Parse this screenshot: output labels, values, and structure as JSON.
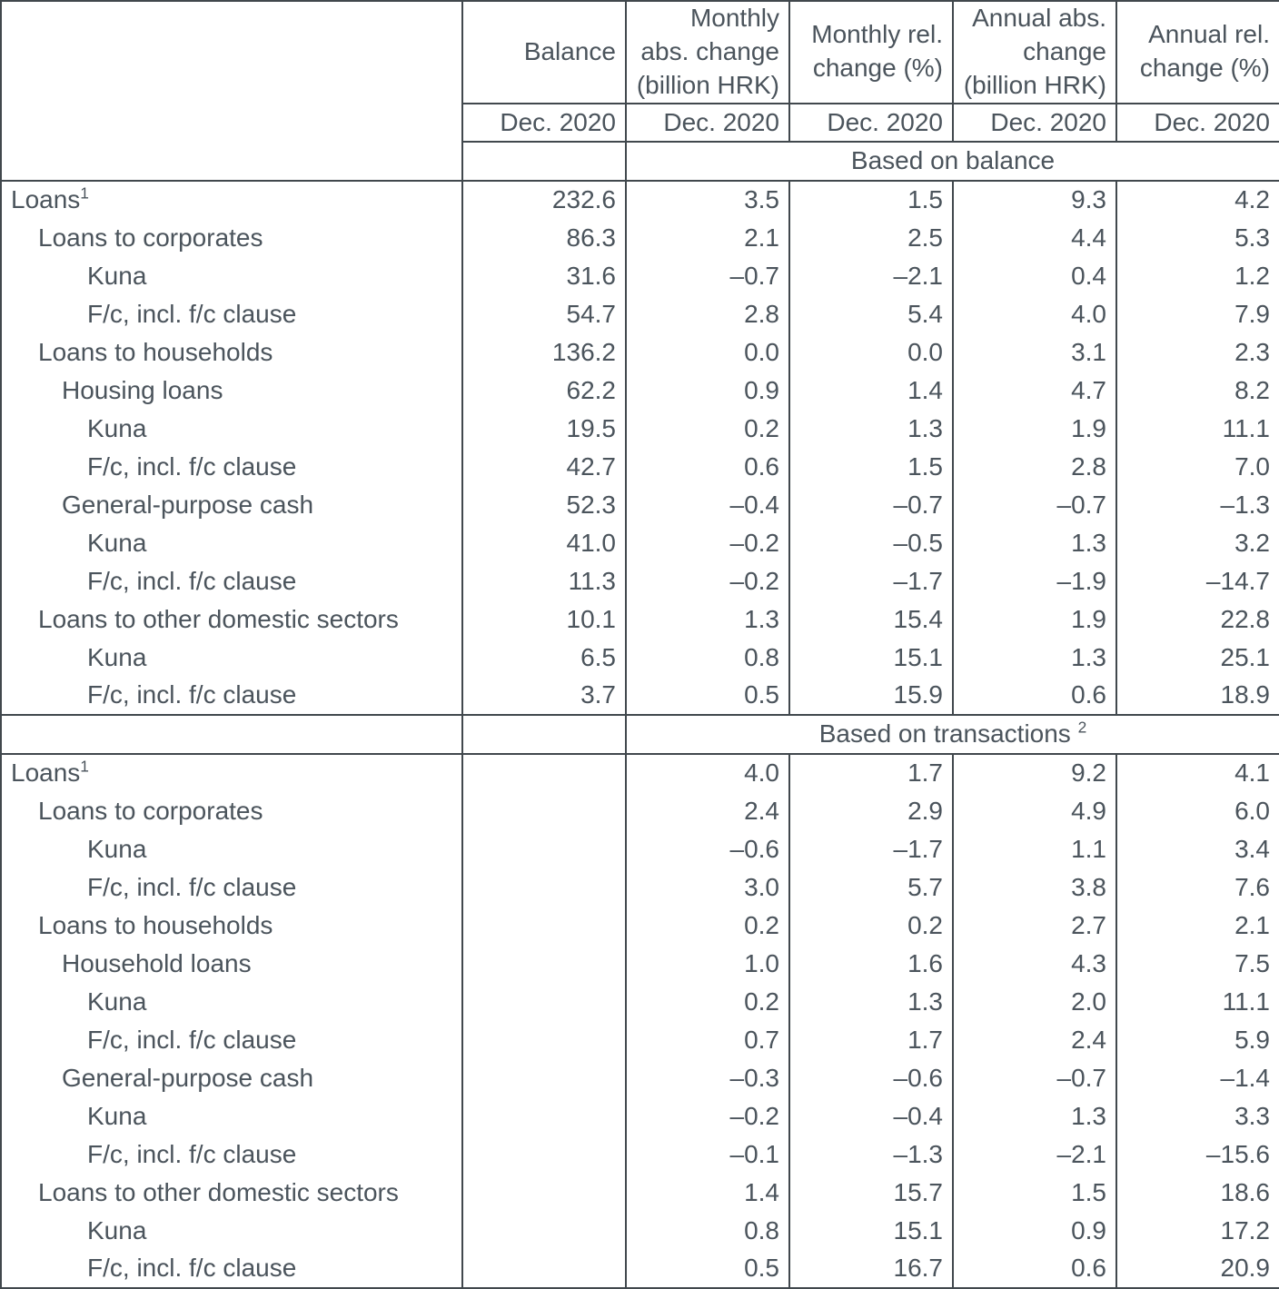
{
  "table": {
    "col_headers": {
      "labels_col": "",
      "balance": "Balance",
      "monthly_abs": "Monthly\nabs. change\n(billion HRK)",
      "monthly_rel": "Monthly rel.\nchange (%)",
      "annual_abs": "Annual abs.\nchange\n(billion HRK)",
      "annual_rel": "Annual rel.\nchange (%)"
    },
    "period_row": {
      "balance": "Dec. 2020",
      "monthly_abs": "Dec. 2020",
      "monthly_rel": "Dec. 2020",
      "annual_abs": "Dec. 2020",
      "annual_rel": "Dec. 2020"
    },
    "sections": [
      {
        "title": "Based on balance",
        "rows": [
          {
            "label": "Loans",
            "sup": "1",
            "indent": 0,
            "values": [
              "232.6",
              "3.5",
              "1.5",
              "9.3",
              "4.2"
            ]
          },
          {
            "label": "Loans to corporates",
            "indent": 1,
            "values": [
              "86.3",
              "2.1",
              "2.5",
              "4.4",
              "5.3"
            ]
          },
          {
            "label": "Kuna",
            "indent": 3,
            "values": [
              "31.6",
              "–0.7",
              "–2.1",
              "0.4",
              "1.2"
            ]
          },
          {
            "label": "F/c, incl. f/c clause",
            "indent": 3,
            "values": [
              "54.7",
              "2.8",
              "5.4",
              "4.0",
              "7.9"
            ]
          },
          {
            "label": "Loans to households",
            "indent": 1,
            "values": [
              "136.2",
              "0.0",
              "0.0",
              "3.1",
              "2.3"
            ]
          },
          {
            "label": "Housing loans",
            "indent": 2,
            "values": [
              "62.2",
              "0.9",
              "1.4",
              "4.7",
              "8.2"
            ]
          },
          {
            "label": "Kuna",
            "indent": 3,
            "values": [
              "19.5",
              "0.2",
              "1.3",
              "1.9",
              "11.1"
            ]
          },
          {
            "label": "F/c, incl. f/c clause",
            "indent": 3,
            "values": [
              "42.7",
              "0.6",
              "1.5",
              "2.8",
              "7.0"
            ]
          },
          {
            "label": "General-purpose cash",
            "indent": 2,
            "values": [
              "52.3",
              "–0.4",
              "–0.7",
              "–0.7",
              "–1.3"
            ]
          },
          {
            "label": "Kuna",
            "indent": 3,
            "values": [
              "41.0",
              "–0.2",
              "–0.5",
              "1.3",
              "3.2"
            ]
          },
          {
            "label": "F/c, incl. f/c clause",
            "indent": 3,
            "values": [
              "11.3",
              "–0.2",
              "–1.7",
              "–1.9",
              "–14.7"
            ]
          },
          {
            "label": "Loans to other domestic sectors",
            "indent": 1,
            "values": [
              "10.1",
              "1.3",
              "15.4",
              "1.9",
              "22.8"
            ]
          },
          {
            "label": "Kuna",
            "indent": 3,
            "values": [
              "6.5",
              "0.8",
              "15.1",
              "1.3",
              "25.1"
            ]
          },
          {
            "label": "F/c, incl. f/c clause",
            "indent": 3,
            "values": [
              "3.7",
              "0.5",
              "15.9",
              "0.6",
              "18.9"
            ]
          }
        ]
      },
      {
        "title": "Based on transactions",
        "title_sup": "2",
        "rows": [
          {
            "label": "Loans",
            "sup": "1",
            "indent": 0,
            "values": [
              "",
              "4.0",
              "1.7",
              "9.2",
              "4.1"
            ]
          },
          {
            "label": "Loans to corporates",
            "indent": 1,
            "values": [
              "",
              "2.4",
              "2.9",
              "4.9",
              "6.0"
            ]
          },
          {
            "label": "Kuna",
            "indent": 3,
            "values": [
              "",
              "–0.6",
              "–1.7",
              "1.1",
              "3.4"
            ]
          },
          {
            "label": "F/c, incl. f/c clause",
            "indent": 3,
            "values": [
              "",
              "3.0",
              "5.7",
              "3.8",
              "7.6"
            ]
          },
          {
            "label": "Loans to households",
            "indent": 1,
            "values": [
              "",
              "0.2",
              "0.2",
              "2.7",
              "2.1"
            ]
          },
          {
            "label": "Household loans",
            "indent": 2,
            "values": [
              "",
              "1.0",
              "1.6",
              "4.3",
              "7.5"
            ]
          },
          {
            "label": "Kuna",
            "indent": 3,
            "values": [
              "",
              "0.2",
              "1.3",
              "2.0",
              "11.1"
            ]
          },
          {
            "label": "F/c, incl. f/c clause",
            "indent": 3,
            "values": [
              "",
              "0.7",
              "1.7",
              "2.4",
              "5.9"
            ]
          },
          {
            "label": "General-purpose cash",
            "indent": 2,
            "values": [
              "",
              "–0.3",
              "–0.6",
              "–0.7",
              "–1.4"
            ]
          },
          {
            "label": "Kuna",
            "indent": 3,
            "values": [
              "",
              "–0.2",
              "–0.4",
              "1.3",
              "3.3"
            ]
          },
          {
            "label": "F/c, incl. f/c clause",
            "indent": 3,
            "values": [
              "",
              "–0.1",
              "–1.3",
              "–2.1",
              "–15.6"
            ]
          },
          {
            "label": "Loans to other domestic sectors",
            "indent": 1,
            "values": [
              "",
              "1.4",
              "15.7",
              "1.5",
              "18.6"
            ]
          },
          {
            "label": "Kuna",
            "indent": 3,
            "values": [
              "",
              "0.8",
              "15.1",
              "0.9",
              "17.2"
            ]
          },
          {
            "label": "F/c, incl. f/c clause",
            "indent": 3,
            "values": [
              "",
              "0.5",
              "16.7",
              "0.6",
              "20.9"
            ]
          }
        ]
      }
    ]
  }
}
